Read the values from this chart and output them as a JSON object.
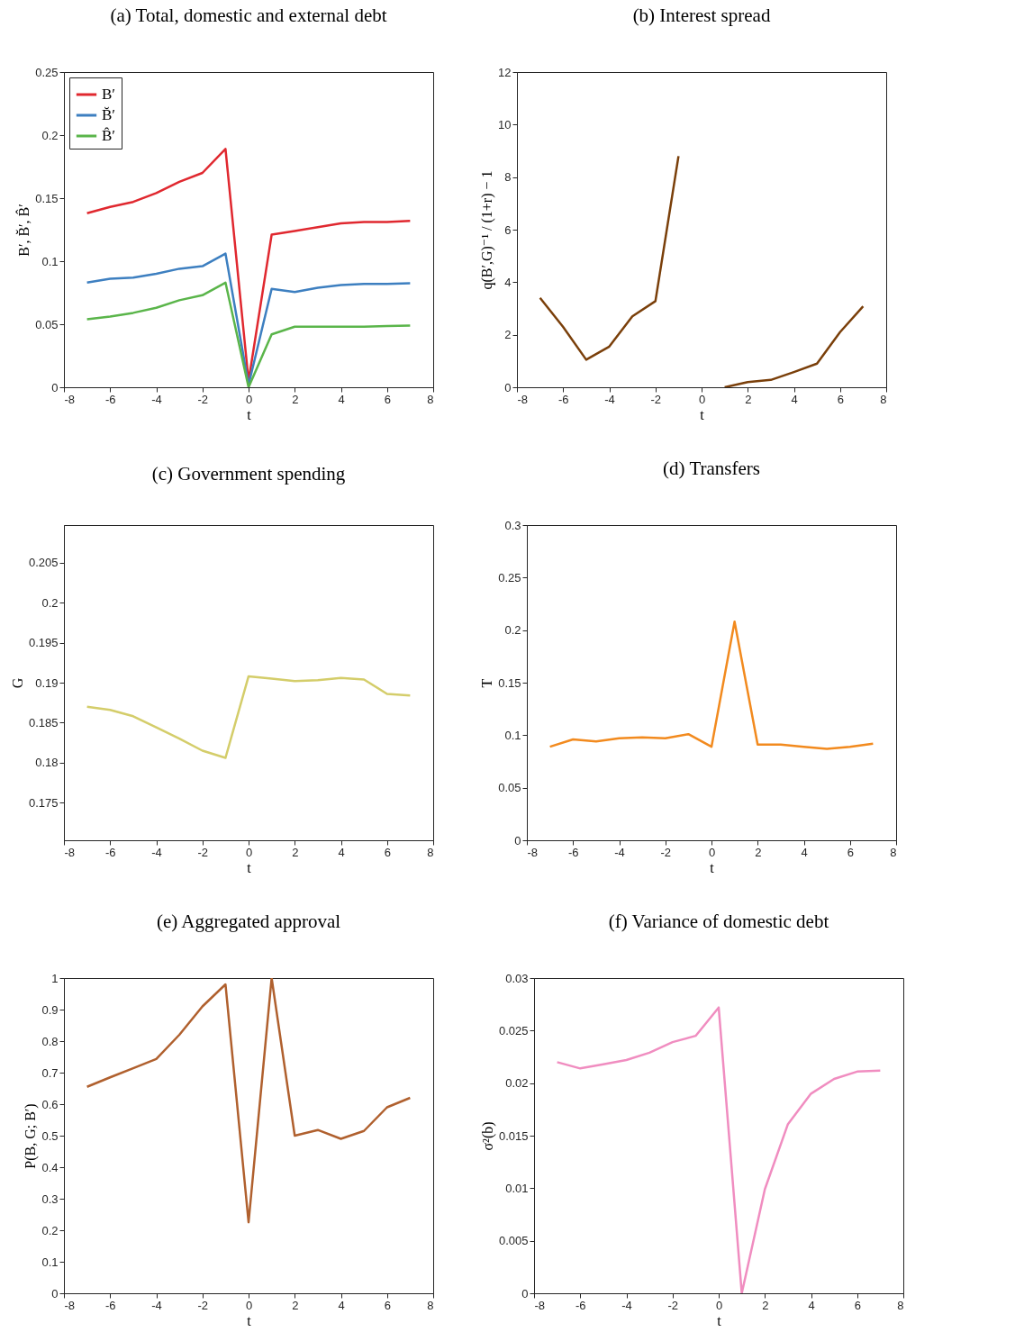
{
  "chart_data": [
    {
      "type": "line",
      "title": "(a) Total, domestic and external debt",
      "xlabel": "t",
      "ylabel": "B′, B̆′, B̂′",
      "x": [
        -7,
        -6,
        -5,
        -4,
        -3,
        -2,
        -1,
        0,
        1,
        2,
        3,
        4,
        5,
        6,
        7
      ],
      "xlim": [
        -8,
        8
      ],
      "xticks": [
        -8,
        -6,
        -4,
        -2,
        0,
        2,
        4,
        6,
        8
      ],
      "ylim": [
        0,
        0.25
      ],
      "yticks": [
        0,
        0.05,
        0.1,
        0.15,
        0.2,
        0.25
      ],
      "legend": "top left",
      "series": [
        {
          "name": "B′",
          "color": "#e0282f",
          "values": [
            0.138,
            0.143,
            0.147,
            0.154,
            0.163,
            0.17,
            0.189,
            0.005,
            0.121,
            0.124,
            0.127,
            0.13,
            0.131,
            0.131,
            0.132
          ]
        },
        {
          "name": "B̆′",
          "color": "#3d7fc0",
          "values": [
            0.083,
            0.086,
            0.087,
            0.09,
            0.094,
            0.096,
            0.106,
            0.002,
            0.078,
            0.0755,
            0.079,
            0.081,
            0.082,
            0.082,
            0.0825
          ]
        },
        {
          "name": "B̂′",
          "color": "#5ab54a",
          "values": [
            0.054,
            0.056,
            0.059,
            0.063,
            0.069,
            0.073,
            0.083,
            0,
            0.042,
            0.048,
            0.048,
            0.048,
            0.048,
            0.0485,
            0.049
          ]
        }
      ]
    },
    {
      "type": "line",
      "title": "(b) Interest spread",
      "xlabel": "t",
      "ylabel": "q(B′,G)⁻¹ / (1+r) − 1",
      "x": [
        -7,
        -6,
        -5,
        -4,
        -3,
        -2,
        -1,
        0,
        1,
        2,
        3,
        4,
        5,
        6,
        7
      ],
      "xlim": [
        -8,
        8
      ],
      "xticks": [
        -8,
        -6,
        -4,
        -2,
        0,
        2,
        4,
        6,
        8
      ],
      "ylim": [
        0,
        12
      ],
      "yticks": [
        0,
        2,
        4,
        6,
        8,
        10,
        12
      ],
      "series": [
        {
          "color": "#7a3f0a",
          "values": [
            3.4,
            2.3,
            1.05,
            1.55,
            2.7,
            3.28,
            8.8,
            null,
            0,
            0.2,
            0.28,
            0.58,
            0.9,
            2.1,
            3.08
          ]
        }
      ]
    },
    {
      "type": "line",
      "title": "(c) Government spending",
      "xlabel": "t",
      "ylabel": "G",
      "x": [
        -7,
        -6,
        -5,
        -4,
        -3,
        -2,
        -1,
        0,
        1,
        2,
        3,
        4,
        5,
        6,
        7
      ],
      "xlim": [
        -8,
        8
      ],
      "xticks": [
        -8,
        -6,
        -4,
        -2,
        0,
        2,
        4,
        6,
        8
      ],
      "ylim": [
        0.1703,
        0.2097
      ],
      "yticks": [
        0.175,
        0.18,
        0.185,
        0.19,
        0.195,
        0.2,
        0.205
      ],
      "series": [
        {
          "color": "#d4cd6a",
          "values": [
            0.187,
            0.1866,
            0.1858,
            0.1844,
            0.183,
            0.1815,
            0.1806,
            0.1908,
            0.1905,
            0.1902,
            0.1903,
            0.1906,
            0.1904,
            0.1886,
            0.1884
          ]
        }
      ]
    },
    {
      "type": "line",
      "title": "(d) Transfers",
      "xlabel": "t",
      "ylabel": "T",
      "x": [
        -7,
        -6,
        -5,
        -4,
        -3,
        -2,
        -1,
        0,
        1,
        2,
        3,
        4,
        5,
        6,
        7
      ],
      "xlim": [
        -8,
        8
      ],
      "xticks": [
        -8,
        -6,
        -4,
        -2,
        0,
        2,
        4,
        6,
        8
      ],
      "ylim": [
        0,
        0.3
      ],
      "yticks": [
        0,
        0.05,
        0.1,
        0.15,
        0.2,
        0.25,
        0.3
      ],
      "series": [
        {
          "color": "#f28a1e",
          "values": [
            0.089,
            0.096,
            0.094,
            0.097,
            0.098,
            0.097,
            0.101,
            0.089,
            0.208,
            0.091,
            0.091,
            0.089,
            0.087,
            0.089,
            0.092
          ]
        }
      ]
    },
    {
      "type": "line",
      "title": "(e) Aggregated approval",
      "xlabel": "t",
      "ylabel": "P(B, G; B′)",
      "x": [
        -7,
        -6,
        -5,
        -4,
        -3,
        -2,
        -1,
        0,
        1,
        2,
        3,
        4,
        5,
        6,
        7
      ],
      "xlim": [
        -8,
        8
      ],
      "xticks": [
        -8,
        -6,
        -4,
        -2,
        0,
        2,
        4,
        6,
        8
      ],
      "ylim": [
        0,
        1
      ],
      "yticks": [
        0,
        0.1,
        0.2,
        0.3,
        0.4,
        0.5,
        0.6,
        0.7,
        0.8,
        0.9,
        1
      ],
      "series": [
        {
          "color": "#b0602e",
          "values": [
            0.655,
            0.685,
            0.714,
            0.743,
            0.82,
            0.91,
            0.98,
            0.225,
            1,
            0.5,
            0.518,
            0.49,
            0.515,
            0.59,
            0.62
          ]
        }
      ]
    },
    {
      "type": "line",
      "title": "(f) Variance of domestic debt",
      "xlabel": "t",
      "ylabel": "σ²(b)",
      "x": [
        -7,
        -6,
        -5,
        -4,
        -3,
        -2,
        -1,
        0,
        1,
        2,
        3,
        4,
        5,
        6,
        7
      ],
      "xlim": [
        -8,
        8
      ],
      "xticks": [
        -8,
        -6,
        -4,
        -2,
        0,
        2,
        4,
        6,
        8
      ],
      "ylim": [
        0,
        0.03
      ],
      "yticks": [
        0,
        0.005,
        0.01,
        0.015,
        0.02,
        0.025,
        0.03
      ],
      "series": [
        {
          "color": "#f08dc0",
          "values": [
            0.022,
            0.0214,
            0.0218,
            0.0222,
            0.0229,
            0.0239,
            0.0245,
            0.0272,
            0,
            0.0099,
            0.0161,
            0.019,
            0.0204,
            0.0211,
            0.0212
          ]
        }
      ]
    }
  ]
}
